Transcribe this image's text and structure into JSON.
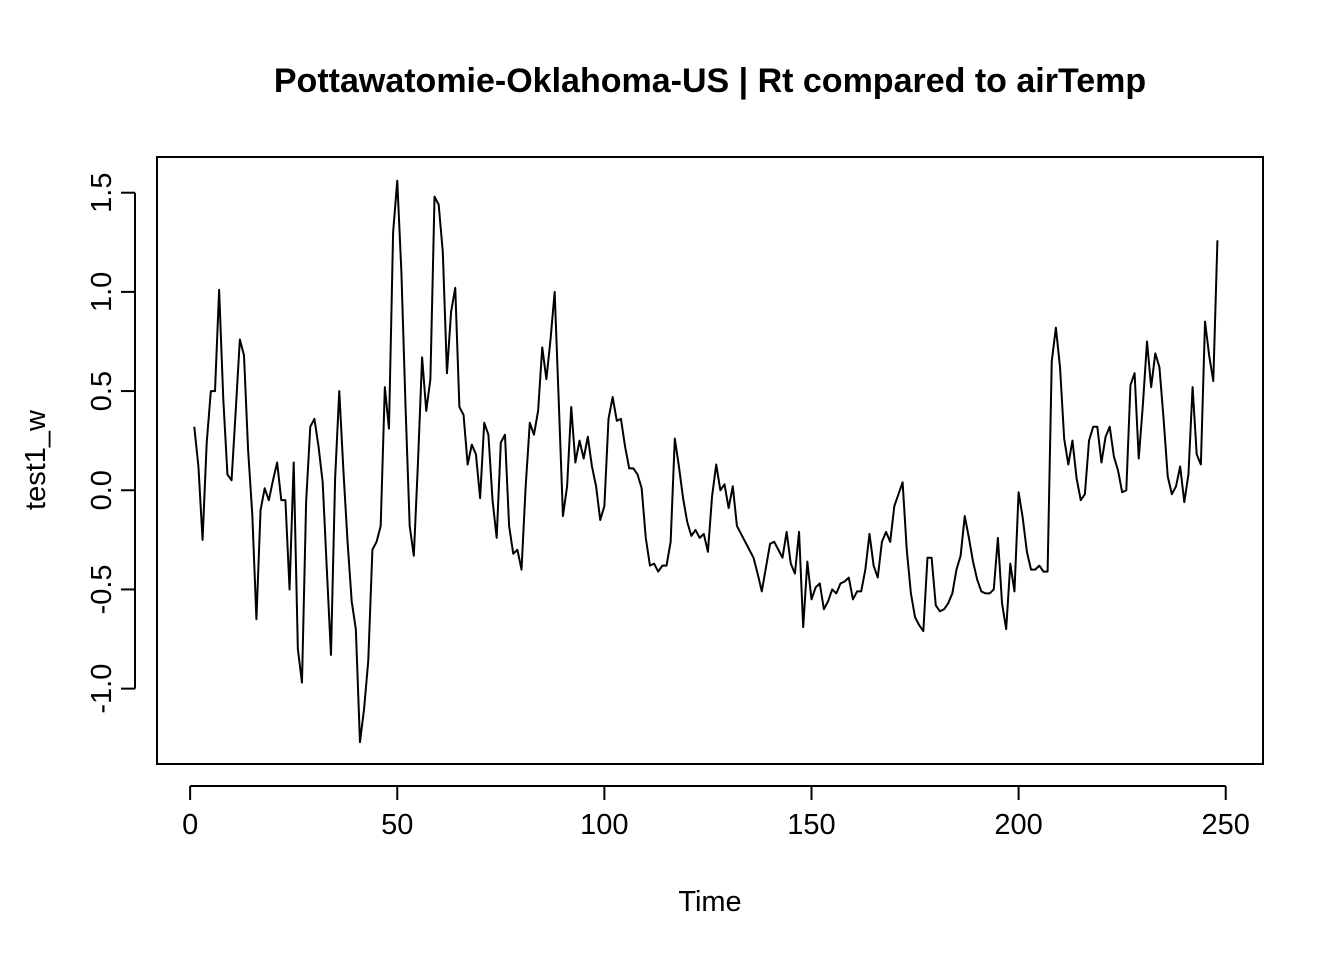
{
  "chart_data": {
    "type": "line",
    "title": "Pottawatomie-Oklahoma-US | Rt compared to airTemp",
    "xlabel": "Time",
    "ylabel": "test1_w",
    "xlim": [
      -8,
      259
    ],
    "ylim": [
      -1.38,
      1.68
    ],
    "x_ticks": [
      0,
      50,
      100,
      150,
      200,
      250
    ],
    "x_tick_labels": [
      "0",
      "50",
      "100",
      "150",
      "200",
      "250"
    ],
    "y_ticks": [
      -1.0,
      -0.5,
      0.0,
      0.5,
      1.0,
      1.5
    ],
    "y_tick_labels": [
      "-1.0",
      "-0.5",
      "0.0",
      "0.5",
      "1.0",
      "1.5"
    ],
    "grid": false,
    "legend": false,
    "line_color": "#000000",
    "x_start": 1,
    "series": [
      {
        "values": [
          0.32,
          0.12,
          -0.25,
          0.24,
          0.5,
          0.5,
          1.01,
          0.46,
          0.08,
          0.05,
          0.4,
          0.76,
          0.68,
          0.2,
          -0.12,
          -0.65,
          -0.1,
          0.01,
          -0.05,
          0.05,
          0.14,
          -0.05,
          -0.05,
          -0.5,
          0.14,
          -0.8,
          -0.97,
          -0.06,
          0.32,
          0.36,
          0.22,
          0.04,
          -0.4,
          -0.83,
          0.06,
          0.5,
          0.1,
          -0.26,
          -0.56,
          -0.7,
          -1.27,
          -1.1,
          -0.86,
          -0.3,
          -0.26,
          -0.18,
          0.52,
          0.31,
          1.3,
          1.56,
          1.1,
          0.42,
          -0.18,
          -0.33,
          0.14,
          0.67,
          0.4,
          0.56,
          1.48,
          1.44,
          1.2,
          0.59,
          0.9,
          1.02,
          0.42,
          0.38,
          0.13,
          0.23,
          0.18,
          -0.04,
          0.34,
          0.28,
          -0.05,
          -0.24,
          0.24,
          0.28,
          -0.18,
          -0.32,
          -0.3,
          -0.4,
          0.02,
          0.34,
          0.28,
          0.4,
          0.72,
          0.56,
          0.76,
          1.0,
          0.44,
          -0.13,
          0.02,
          0.42,
          0.14,
          0.25,
          0.16,
          0.27,
          0.12,
          0.02,
          -0.15,
          -0.08,
          0.36,
          0.47,
          0.35,
          0.36,
          0.22,
          0.11,
          0.11,
          0.08,
          0.01,
          -0.24,
          -0.38,
          -0.37,
          -0.41,
          -0.38,
          -0.38,
          -0.26,
          0.26,
          0.12,
          -0.04,
          -0.16,
          -0.23,
          -0.2,
          -0.24,
          -0.22,
          -0.31,
          -0.03,
          0.13,
          0.0,
          0.03,
          -0.09,
          0.02,
          -0.18,
          -0.22,
          -0.26,
          -0.3,
          -0.34,
          -0.42,
          -0.51,
          -0.39,
          -0.27,
          -0.26,
          -0.3,
          -0.34,
          -0.21,
          -0.37,
          -0.42,
          -0.21,
          -0.69,
          -0.36,
          -0.55,
          -0.49,
          -0.47,
          -0.6,
          -0.56,
          -0.5,
          -0.52,
          -0.47,
          -0.46,
          -0.44,
          -0.55,
          -0.51,
          -0.51,
          -0.4,
          -0.22,
          -0.38,
          -0.44,
          -0.26,
          -0.21,
          -0.26,
          -0.08,
          -0.02,
          0.04,
          -0.3,
          -0.52,
          -0.64,
          -0.68,
          -0.71,
          -0.34,
          -0.34,
          -0.58,
          -0.61,
          -0.6,
          -0.57,
          -0.52,
          -0.4,
          -0.33,
          -0.13,
          -0.24,
          -0.36,
          -0.45,
          -0.51,
          -0.52,
          -0.52,
          -0.5,
          -0.24,
          -0.57,
          -0.7,
          -0.37,
          -0.51,
          -0.01,
          -0.14,
          -0.31,
          -0.4,
          -0.4,
          -0.38,
          -0.41,
          -0.41,
          0.65,
          0.82,
          0.62,
          0.26,
          0.13,
          0.25,
          0.06,
          -0.05,
          -0.02,
          0.25,
          0.32,
          0.32,
          0.14,
          0.27,
          0.32,
          0.17,
          0.1,
          -0.01,
          0.0,
          0.53,
          0.59,
          0.16,
          0.43,
          0.75,
          0.52,
          0.69,
          0.62,
          0.36,
          0.07,
          -0.02,
          0.02,
          0.12,
          -0.06,
          0.08,
          0.52,
          0.18,
          0.13,
          0.85,
          0.68,
          0.55,
          1.26
        ]
      }
    ]
  }
}
